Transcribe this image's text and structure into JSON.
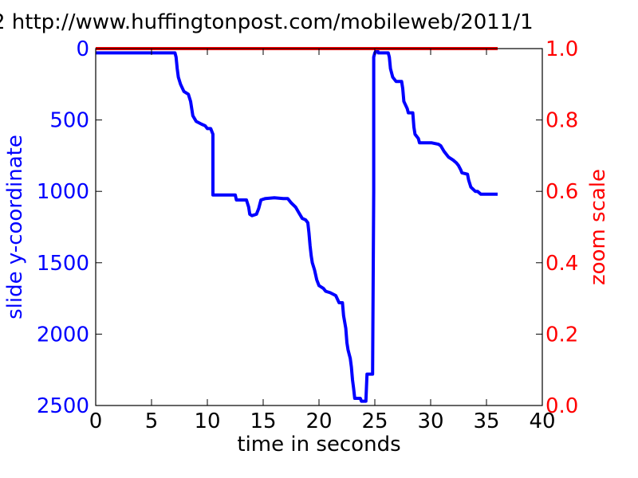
{
  "chart_data": {
    "type": "line",
    "title": "2 http://www.huffingtonpost.com/mobileweb/2011/1",
    "xlabel": "time in seconds",
    "ylabel_left": "slide y-coordinate",
    "ylabel_right": "zoom scale",
    "xlim": [
      0,
      40
    ],
    "ylim_left": [
      2500,
      0
    ],
    "ylim_right": [
      0.0,
      1.0
    ],
    "x_ticks": [
      "0",
      "5",
      "10",
      "15",
      "20",
      "25",
      "30",
      "35",
      "40"
    ],
    "y_left_ticks": [
      "0",
      "500",
      "1000",
      "1500",
      "2000",
      "2500"
    ],
    "y_right_ticks": [
      "0.0",
      "0.2",
      "0.4",
      "0.6",
      "0.8",
      "1.0"
    ],
    "grid": false,
    "colors": {
      "left_series": "#0000ff",
      "right_series": "#ff0000",
      "axes": "#000000"
    },
    "series": [
      {
        "axis": "left",
        "color": "#0000ff",
        "points": [
          [
            0.0,
            30
          ],
          [
            7.1,
            30
          ],
          [
            7.2,
            60
          ],
          [
            7.3,
            140
          ],
          [
            7.4,
            200
          ],
          [
            7.6,
            250
          ],
          [
            7.9,
            300
          ],
          [
            8.3,
            320
          ],
          [
            8.5,
            370
          ],
          [
            8.6,
            420
          ],
          [
            8.7,
            470
          ],
          [
            9.0,
            510
          ],
          [
            9.5,
            530
          ],
          [
            9.8,
            540
          ],
          [
            10.0,
            560
          ],
          [
            10.3,
            560
          ],
          [
            10.5,
            600
          ],
          [
            10.5,
            1025
          ],
          [
            12.5,
            1025
          ],
          [
            12.6,
            1060
          ],
          [
            13.5,
            1060
          ],
          [
            13.7,
            1110
          ],
          [
            13.8,
            1160
          ],
          [
            14.0,
            1170
          ],
          [
            14.4,
            1160
          ],
          [
            14.6,
            1120
          ],
          [
            14.8,
            1060
          ],
          [
            15.2,
            1050
          ],
          [
            16.0,
            1045
          ],
          [
            16.8,
            1050
          ],
          [
            17.2,
            1050
          ],
          [
            17.5,
            1080
          ],
          [
            17.9,
            1110
          ],
          [
            18.2,
            1150
          ],
          [
            18.5,
            1190
          ],
          [
            18.8,
            1200
          ],
          [
            19.0,
            1220
          ],
          [
            19.1,
            1290
          ],
          [
            19.2,
            1380
          ],
          [
            19.3,
            1450
          ],
          [
            19.4,
            1500
          ],
          [
            19.6,
            1550
          ],
          [
            19.8,
            1620
          ],
          [
            20.0,
            1660
          ],
          [
            20.4,
            1680
          ],
          [
            20.6,
            1700
          ],
          [
            21.0,
            1710
          ],
          [
            21.5,
            1730
          ],
          [
            21.8,
            1780
          ],
          [
            22.1,
            1780
          ],
          [
            22.2,
            1870
          ],
          [
            22.4,
            1960
          ],
          [
            22.5,
            2060
          ],
          [
            22.6,
            2110
          ],
          [
            22.8,
            2170
          ],
          [
            22.9,
            2230
          ],
          [
            23.0,
            2320
          ],
          [
            23.1,
            2380
          ],
          [
            23.2,
            2450
          ],
          [
            23.7,
            2450
          ],
          [
            23.8,
            2470
          ],
          [
            24.2,
            2470
          ],
          [
            24.3,
            2280
          ],
          [
            24.8,
            2280
          ],
          [
            24.9,
            1000
          ],
          [
            24.9,
            60
          ],
          [
            25.0,
            30
          ],
          [
            25.2,
            0
          ],
          [
            25.3,
            30
          ],
          [
            26.2,
            30
          ],
          [
            26.3,
            60
          ],
          [
            26.4,
            140
          ],
          [
            26.6,
            200
          ],
          [
            26.9,
            230
          ],
          [
            27.4,
            230
          ],
          [
            27.5,
            280
          ],
          [
            27.6,
            370
          ],
          [
            27.9,
            420
          ],
          [
            28.0,
            450
          ],
          [
            28.4,
            450
          ],
          [
            28.5,
            550
          ],
          [
            28.6,
            600
          ],
          [
            28.9,
            630
          ],
          [
            29.0,
            660
          ],
          [
            30.1,
            660
          ],
          [
            30.7,
            670
          ],
          [
            30.9,
            680
          ],
          [
            31.2,
            720
          ],
          [
            31.6,
            760
          ],
          [
            32.0,
            780
          ],
          [
            32.3,
            800
          ],
          [
            32.5,
            820
          ],
          [
            32.7,
            850
          ],
          [
            32.8,
            870
          ],
          [
            33.3,
            880
          ],
          [
            33.4,
            920
          ],
          [
            33.6,
            970
          ],
          [
            34.0,
            1000
          ],
          [
            34.2,
            1000
          ],
          [
            34.5,
            1020
          ],
          [
            36.0,
            1020
          ]
        ]
      },
      {
        "axis": "right",
        "color": "#ff0000",
        "points": [
          [
            0.0,
            1.0
          ],
          [
            36.0,
            1.0
          ]
        ]
      }
    ]
  }
}
